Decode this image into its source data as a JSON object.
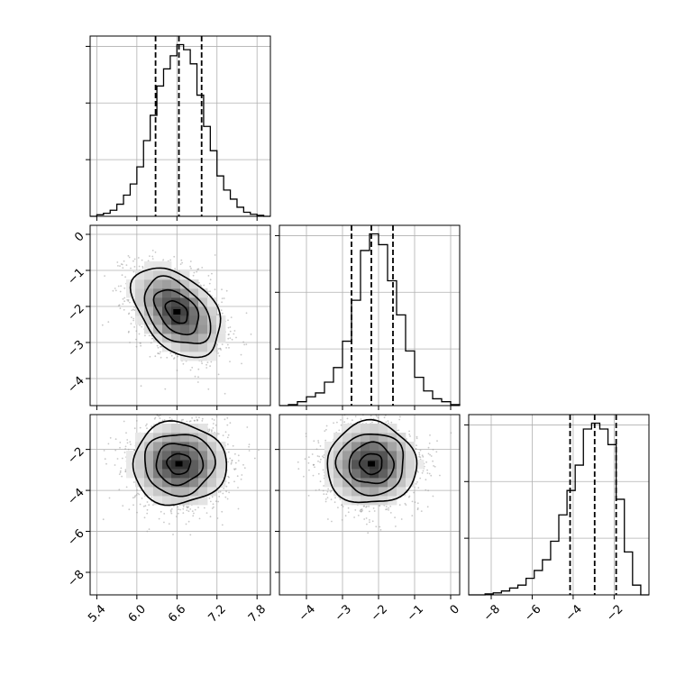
{
  "chart_data": {
    "type": "corner",
    "parameters": [
      "",
      "",
      ""
    ],
    "grid": true,
    "quantile_lines": "dashed",
    "axes": [
      {
        "range": [
          5.3,
          8.0
        ],
        "ticks": [
          5.4,
          6.0,
          6.6,
          7.2,
          7.8
        ],
        "tick_labels": [
          "5.4",
          "6.0",
          "6.6",
          "7.2",
          "7.8"
        ]
      },
      {
        "range": [
          -4.75,
          0.25
        ],
        "ticks": [
          -4,
          -3,
          -2,
          -1,
          0
        ],
        "tick_labels": [
          "−4",
          "−3",
          "−2",
          "−1",
          "0"
        ]
      },
      {
        "range": [
          -9.1,
          -0.3
        ],
        "ticks": [
          -8,
          -6,
          -4,
          -2
        ],
        "tick_labels": [
          "−8",
          "−6",
          "−4",
          "−2"
        ]
      }
    ],
    "quantiles": [
      [
        6.28,
        6.63,
        6.97
      ],
      [
        -2.75,
        -2.2,
        -1.6
      ],
      [
        -4.15,
        -2.95,
        -1.9
      ]
    ],
    "histograms": [
      {
        "edges": [
          5.3,
          5.4,
          5.5,
          5.6,
          5.7,
          5.8,
          5.9,
          6.0,
          6.1,
          6.2,
          6.3,
          6.4,
          6.5,
          6.6,
          6.7,
          6.8,
          6.9,
          7.0,
          7.1,
          7.2,
          7.3,
          7.4,
          7.5,
          7.6,
          7.7,
          7.8,
          7.9,
          8.0
        ],
        "counts": [
          0,
          3,
          6,
          12,
          24,
          42,
          64,
          98,
          150,
          200,
          258,
          292,
          318,
          340,
          330,
          302,
          240,
          178,
          130,
          80,
          52,
          34,
          18,
          8,
          4,
          2,
          0
        ]
      },
      {
        "edges": [
          -4.75,
          -4.5,
          -4.25,
          -4.0,
          -3.75,
          -3.5,
          -3.25,
          -3.0,
          -2.75,
          -2.5,
          -2.25,
          -2.0,
          -1.75,
          -1.5,
          -1.25,
          -1.0,
          -0.75,
          -0.5,
          -0.25,
          0.0,
          0.25
        ],
        "counts": [
          0,
          2,
          8,
          18,
          26,
          48,
          78,
          132,
          216,
          318,
          352,
          330,
          256,
          186,
          112,
          58,
          30,
          14,
          8,
          2
        ]
      },
      {
        "edges": [
          -9.1,
          -8.7,
          -8.3,
          -7.9,
          -7.5,
          -7.1,
          -6.7,
          -6.3,
          -5.9,
          -5.5,
          -5.1,
          -4.7,
          -4.3,
          -3.9,
          -3.5,
          -3.1,
          -2.7,
          -2.3,
          -1.9,
          -1.5,
          -1.1,
          -0.7,
          -0.3
        ],
        "counts": [
          0,
          0,
          2,
          4,
          8,
          14,
          20,
          34,
          50,
          72,
          110,
          164,
          214,
          266,
          340,
          352,
          340,
          308,
          196,
          88,
          20,
          0
        ]
      }
    ],
    "pairs": [
      {
        "x_param": 0,
        "y_param": 1,
        "center": [
          6.6,
          -2.15
        ],
        "sd": [
          0.33,
          0.62
        ],
        "rho": -0.42
      },
      {
        "x_param": 0,
        "y_param": 2,
        "center": [
          6.63,
          -2.7
        ],
        "sd": [
          0.35,
          1.0
        ],
        "rho": 0.0
      },
      {
        "x_param": 1,
        "y_param": 2,
        "center": [
          -2.2,
          -2.7
        ],
        "sd": [
          0.62,
          1.0
        ],
        "rho": 0.0
      }
    ],
    "contour_levels_sigma": [
      0.5,
      1.0,
      1.5,
      2.0
    ]
  }
}
